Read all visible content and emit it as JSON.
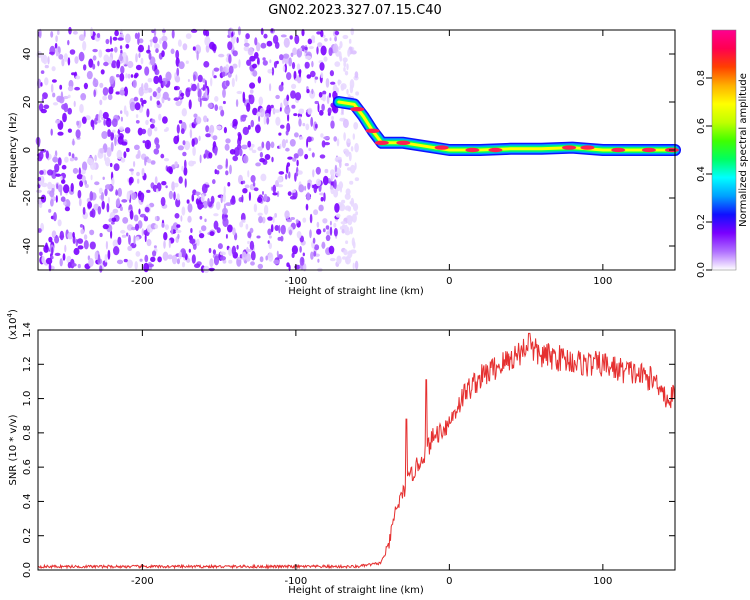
{
  "figure": {
    "title": "GN02.2023.327.07.15.C40"
  },
  "chart_data": [
    {
      "type": "heatmap",
      "title": "GN02.2023.327.07.15.C40",
      "xlabel": "Height of straight line (km)",
      "ylabel": "Frequency (Hz)",
      "xlim": [
        -268,
        147
      ],
      "ylim": [
        -50,
        50
      ],
      "x_ticks": [
        -200,
        -100,
        0,
        100
      ],
      "x_tick_labels": [
        "-200",
        "-100",
        "0",
        "100"
      ],
      "y_ticks": [
        40,
        20,
        0,
        -20,
        -40
      ],
      "y_tick_labels": [
        "40",
        "20",
        "0",
        "-20",
        "-40"
      ],
      "noise_region_x": [
        -268,
        -60
      ],
      "ridge": [
        {
          "x": -72,
          "y": 20
        },
        {
          "x": -62,
          "y": 19
        },
        {
          "x": -56,
          "y": 14
        },
        {
          "x": -50,
          "y": 8
        },
        {
          "x": -44,
          "y": 3
        },
        {
          "x": -38,
          "y": 3
        },
        {
          "x": -30,
          "y": 3
        },
        {
          "x": -20,
          "y": 2
        },
        {
          "x": -10,
          "y": 1
        },
        {
          "x": 0,
          "y": 0
        },
        {
          "x": 20,
          "y": 0
        },
        {
          "x": 40,
          "y": 0.5
        },
        {
          "x": 60,
          "y": 0.5
        },
        {
          "x": 80,
          "y": 1
        },
        {
          "x": 100,
          "y": 0
        },
        {
          "x": 147,
          "y": 0
        }
      ],
      "colorbar": {
        "label": "Normalized spectral amplitude",
        "range": [
          0,
          1
        ],
        "ticks": [
          0.0,
          0.2,
          0.4,
          0.6,
          0.8
        ],
        "tick_labels": [
          "0.0",
          "0.2",
          "0.4",
          "0.6",
          "0.8"
        ],
        "colors": [
          "#ffffff",
          "#b070ff",
          "#7a00ff",
          "#1010ff",
          "#00a0ff",
          "#00ffff",
          "#00ff60",
          "#40ff00",
          "#c0ff00",
          "#ffff00",
          "#ffb000",
          "#ff4000",
          "#ff0050",
          "#ff0090"
        ]
      }
    },
    {
      "type": "line",
      "xlabel": "Height of straight line (km)",
      "ylabel": "SNR (10 * v/v)",
      "y_multiplier_label": "(x10",
      "y_multiplier_exp": "4",
      "xlim": [
        -268,
        147
      ],
      "ylim": [
        0,
        1.4
      ],
      "x_ticks": [
        -200,
        -100,
        0,
        100
      ],
      "x_tick_labels": [
        "-200",
        "-100",
        "0",
        "100"
      ],
      "y_ticks": [
        0.0,
        0.2,
        0.4,
        0.6,
        0.8,
        1.0,
        1.2,
        1.4
      ],
      "y_tick_labels": [
        "0.0",
        "0.2",
        "0.4",
        "0.6",
        "0.8",
        "1.0",
        "1.2",
        "1.4"
      ],
      "series": [
        {
          "color": "#e53030",
          "points": [
            [
              -268,
              0.02
            ],
            [
              -240,
              0.02
            ],
            [
              -200,
              0.02
            ],
            [
              -150,
              0.02
            ],
            [
              -100,
              0.02
            ],
            [
              -60,
              0.02
            ],
            [
              -45,
              0.04
            ],
            [
              -40,
              0.12
            ],
            [
              -35,
              0.35
            ],
            [
              -30,
              0.45
            ],
            [
              -25,
              0.55
            ],
            [
              -20,
              0.62
            ],
            [
              -15,
              0.7
            ],
            [
              -10,
              0.78
            ],
            [
              -5,
              0.82
            ],
            [
              0,
              0.86
            ],
            [
              5,
              0.95
            ],
            [
              10,
              1.03
            ],
            [
              15,
              1.08
            ],
            [
              20,
              1.12
            ],
            [
              30,
              1.18
            ],
            [
              40,
              1.23
            ],
            [
              50,
              1.3
            ],
            [
              55,
              1.28
            ],
            [
              60,
              1.25
            ],
            [
              70,
              1.24
            ],
            [
              80,
              1.22
            ],
            [
              90,
              1.2
            ],
            [
              100,
              1.2
            ],
            [
              110,
              1.17
            ],
            [
              120,
              1.15
            ],
            [
              130,
              1.12
            ],
            [
              138,
              1.08
            ],
            [
              142,
              0.98
            ],
            [
              147,
              1.03
            ]
          ],
          "spikes": [
            {
              "x": -15,
              "y": 1.11
            },
            {
              "x": -28,
              "y": 0.88
            },
            {
              "x": 52,
              "y": 1.38
            }
          ]
        }
      ]
    }
  ]
}
